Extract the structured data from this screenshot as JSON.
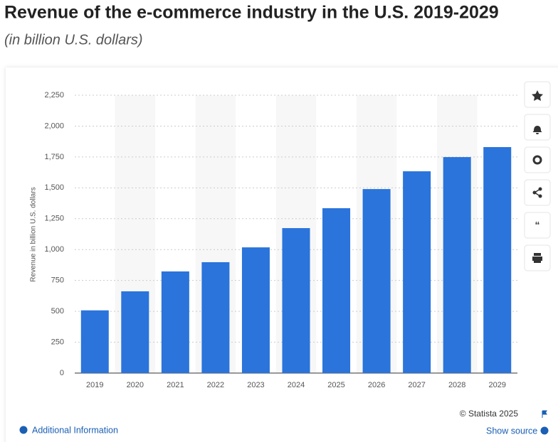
{
  "chart_data": {
    "type": "bar",
    "title": "Revenue of the e-commerce industry in the U.S. 2019-2029",
    "subtitle": "(in billion U.S. dollars)",
    "y_label": "Revenue in billion U.S. dollars",
    "categories": [
      "2019",
      "2020",
      "2021",
      "2022",
      "2023",
      "2024",
      "2025",
      "2026",
      "2027",
      "2028",
      "2029"
    ],
    "values": [
      508,
      662,
      823,
      898,
      1018,
      1174,
      1335,
      1490,
      1634,
      1749,
      1830
    ],
    "color": "#2a74db",
    "ylim": [
      0,
      2250
    ],
    "yticks": [
      0,
      250,
      500,
      750,
      {
        "value": 1000,
        "label": "1,000"
      },
      {
        "value": 1250,
        "label": "1,250"
      },
      {
        "value": 1500,
        "label": "1,500"
      },
      {
        "value": 1750,
        "label": "1,750"
      },
      {
        "value": 2000,
        "label": "2,000"
      },
      {
        "value": 2250,
        "label": "2,250"
      }
    ],
    "grid": true,
    "copyright": "© Statista 2025",
    "additional_info": "Additional Information",
    "show_source": "Show source"
  }
}
